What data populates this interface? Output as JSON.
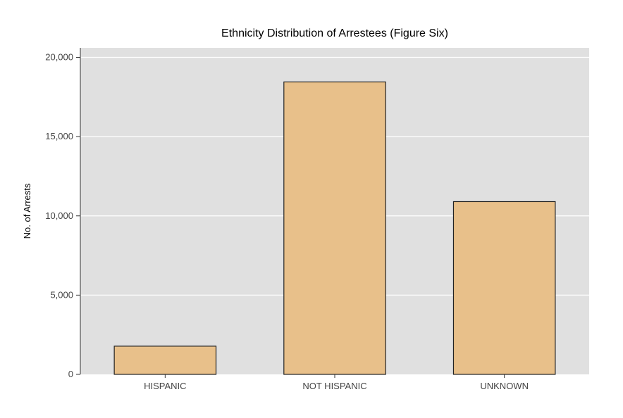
{
  "chart_data": {
    "type": "bar",
    "title": "Ethnicity Distribution of Arrestees (Figure Six)",
    "xlabel": "",
    "ylabel": "No. of Arrests",
    "categories": [
      "HISPANIC",
      "NOT HISPANIC",
      "UNKNOWN"
    ],
    "values": [
      1780,
      18450,
      10900
    ],
    "ylim": [
      0,
      20000
    ],
    "yticks": [
      0,
      5000,
      10000,
      15000,
      20000
    ],
    "ytick_labels": [
      "0",
      "5,000",
      "10,000",
      "15,000",
      "20,000"
    ],
    "grid": true,
    "legend": "none"
  },
  "colors": {
    "bar_fill": "#E8C08A",
    "bar_stroke": "#222222",
    "panel_background": "#E0E0E0",
    "gridline": "#FFFFFF"
  }
}
